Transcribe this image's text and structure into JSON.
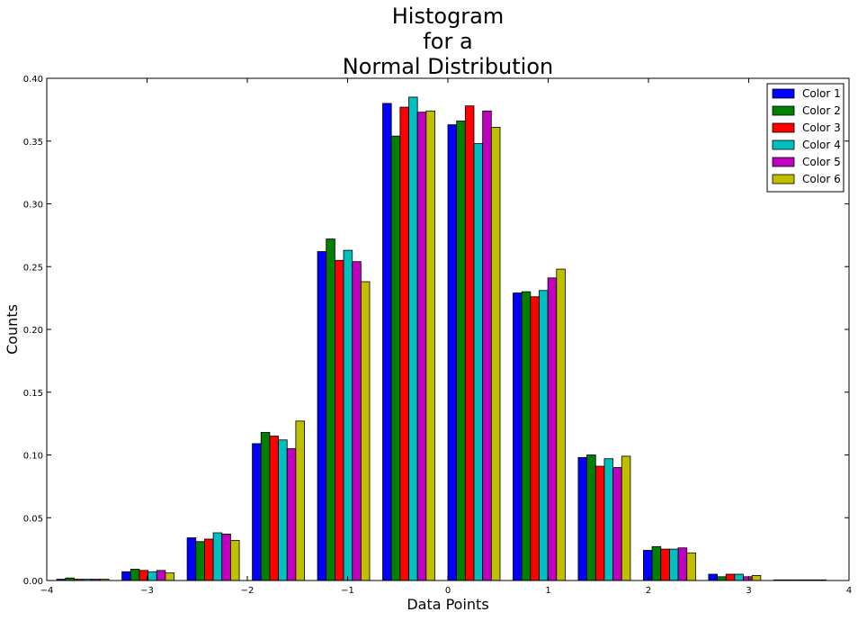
{
  "chart_data": {
    "type": "bar",
    "title_lines": [
      "Histogram",
      "for a",
      "Normal Distribution"
    ],
    "xlabel": "Data Points",
    "ylabel": "Counts",
    "xlim": [
      -4,
      4
    ],
    "ylim": [
      0,
      0.4
    ],
    "x_ticks": [
      -4,
      -3,
      -2,
      -1,
      0,
      1,
      2,
      3,
      4
    ],
    "x_tick_labels": [
      "−4",
      "−3",
      "−2",
      "−1",
      "0",
      "1",
      "2",
      "3",
      "4"
    ],
    "y_ticks": [
      0,
      0.05,
      0.1,
      0.15,
      0.2,
      0.25,
      0.3,
      0.35,
      0.4
    ],
    "y_tick_labels": [
      "0.00",
      "0.05",
      "0.10",
      "0.15",
      "0.20",
      "0.25",
      "0.30",
      "0.35",
      "0.40"
    ],
    "bins": [
      [
        -3.9,
        -3.25
      ],
      [
        -3.25,
        -2.6
      ],
      [
        -2.6,
        -1.95
      ],
      [
        -1.95,
        -1.3
      ],
      [
        -1.3,
        -0.65
      ],
      [
        -0.65,
        0.0
      ],
      [
        0.0,
        0.65
      ],
      [
        0.65,
        1.3
      ],
      [
        1.3,
        1.95
      ],
      [
        1.95,
        2.6
      ],
      [
        2.6,
        3.25
      ],
      [
        3.25,
        3.9
      ]
    ],
    "series": [
      {
        "name": "Color 1",
        "color": "#0000ff",
        "values": [
          0.001,
          0.007,
          0.034,
          0.109,
          0.262,
          0.38,
          0.363,
          0.229,
          0.098,
          0.024,
          0.005,
          0.0005
        ]
      },
      {
        "name": "Color 2",
        "color": "#008000",
        "values": [
          0.002,
          0.009,
          0.031,
          0.118,
          0.272,
          0.354,
          0.366,
          0.23,
          0.1,
          0.027,
          0.003,
          0.0005
        ]
      },
      {
        "name": "Color 3",
        "color": "#ff0000",
        "values": [
          0.001,
          0.008,
          0.033,
          0.115,
          0.255,
          0.377,
          0.378,
          0.226,
          0.091,
          0.025,
          0.005,
          0.0005
        ]
      },
      {
        "name": "Color 4",
        "color": "#00bfbf",
        "values": [
          0.001,
          0.007,
          0.038,
          0.112,
          0.263,
          0.385,
          0.348,
          0.231,
          0.097,
          0.025,
          0.005,
          0.0005
        ]
      },
      {
        "name": "Color 5",
        "color": "#bf00bf",
        "values": [
          0.001,
          0.008,
          0.037,
          0.105,
          0.254,
          0.373,
          0.374,
          0.241,
          0.09,
          0.026,
          0.003,
          0.0005
        ]
      },
      {
        "name": "Color 6",
        "color": "#bfbf00",
        "values": [
          0.001,
          0.006,
          0.032,
          0.127,
          0.238,
          0.374,
          0.361,
          0.248,
          0.099,
          0.022,
          0.004,
          0.0005
        ]
      }
    ],
    "legend_position": "top-right",
    "grid": false
  }
}
